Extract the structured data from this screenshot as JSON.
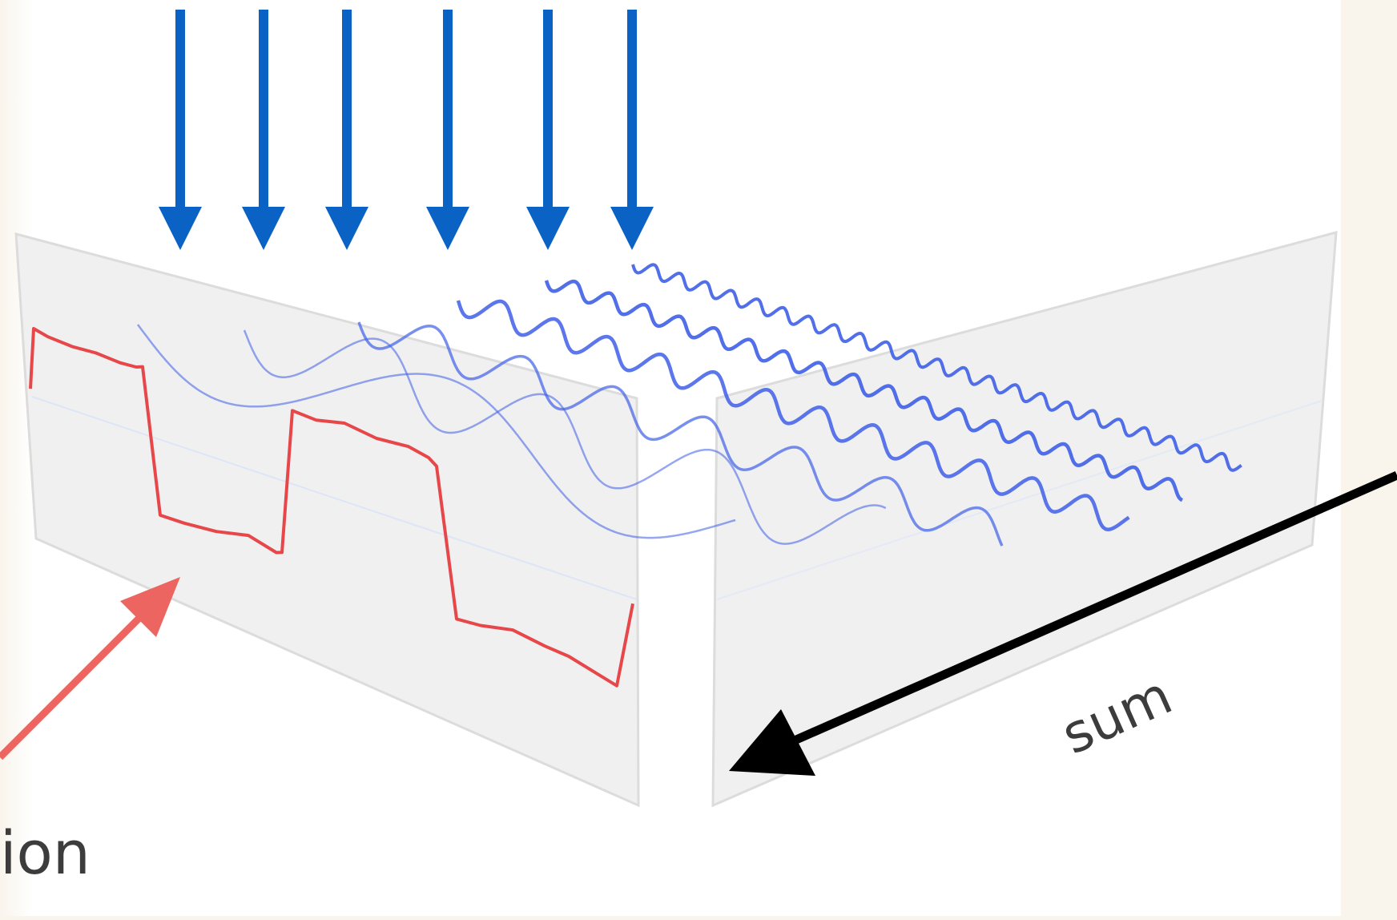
{
  "labels": {
    "sum": "sum",
    "function": "ion"
  },
  "colors": {
    "background_outer": "#f9f4ec",
    "panel_area": "#ffffff",
    "plane_fill": "#f0f0f0",
    "plane_edge": "#dcdcdc",
    "arrow_blue": "#0a63c4",
    "wave_blue": "#3f5fe8",
    "function_red": "#e8474a",
    "arrow_red": "#ec6560",
    "arrow_black": "#000000",
    "label_text": "#3c3c3c"
  },
  "icons": {
    "down_arrows": "arrow-down-icon",
    "pointer_red": "arrow-pointer-icon",
    "pointer_black": "arrow-pointer-icon"
  },
  "components": {
    "count": 6
  }
}
